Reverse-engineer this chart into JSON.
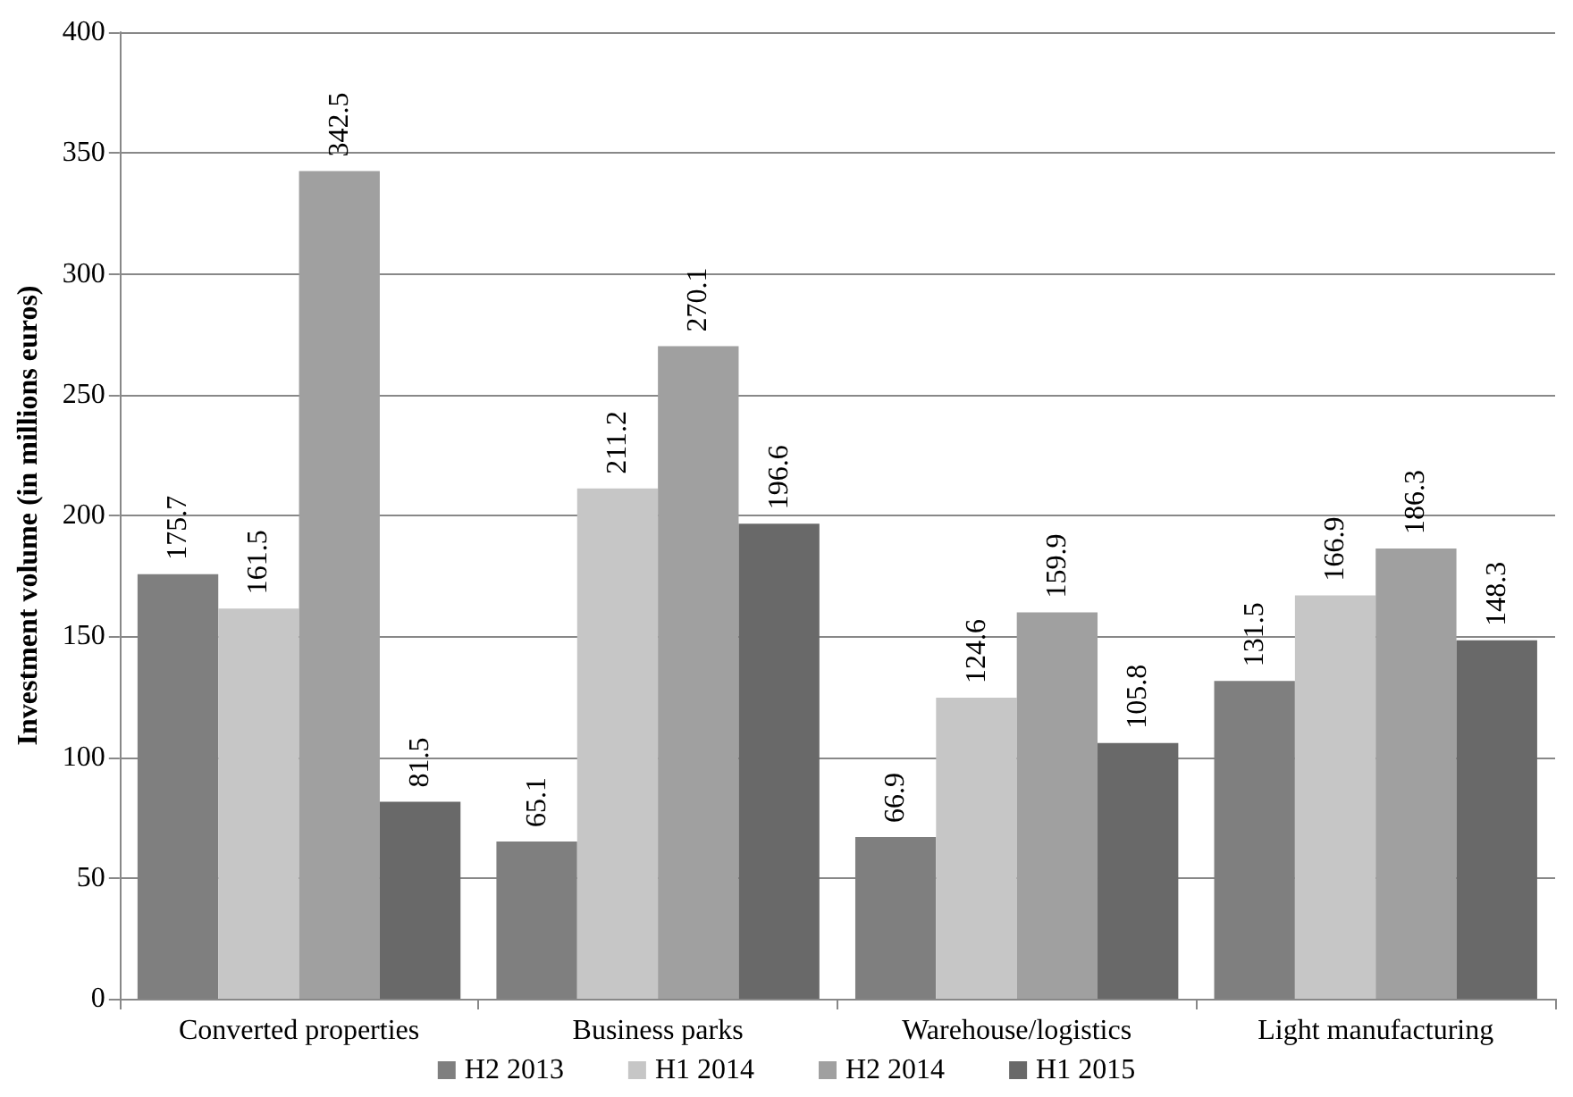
{
  "chart_data": {
    "type": "bar",
    "ylabel": "Investment volume (in millions euros)",
    "categories": [
      "Converted properties",
      "Business parks",
      "Warehouse/logistics",
      "Light manufacturing"
    ],
    "series": [
      {
        "name": "H2 2013",
        "color": "#7f7f7f",
        "values": [
          175.7,
          65.1,
          66.9,
          131.5
        ]
      },
      {
        "name": "H1 2014",
        "color": "#c6c6c6",
        "values": [
          161.5,
          211.2,
          124.6,
          166.9
        ]
      },
      {
        "name": "H2 2014",
        "color": "#a0a0a0",
        "values": [
          342.5,
          270.1,
          159.9,
          186.3
        ]
      },
      {
        "name": "H1 2015",
        "color": "#696969",
        "values": [
          81.5,
          196.6,
          105.8,
          148.3
        ]
      }
    ],
    "ylim": [
      0,
      400
    ],
    "yticks": [
      0,
      50,
      100,
      150,
      200,
      250,
      300,
      350,
      400
    ],
    "grid": "y",
    "legend": "bottom",
    "data_labels": true
  }
}
